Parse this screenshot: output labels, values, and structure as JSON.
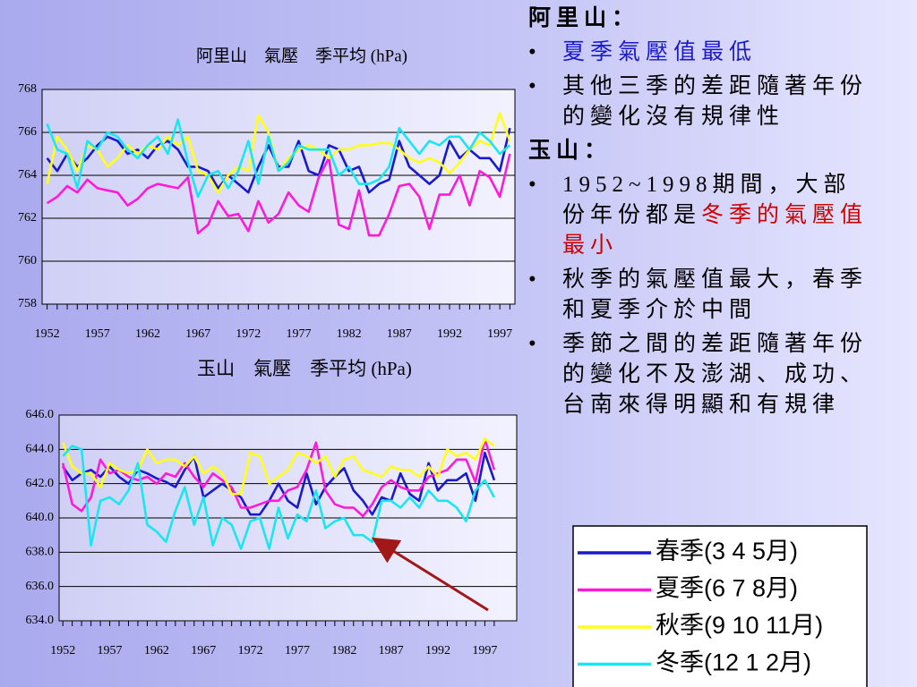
{
  "chart_data": [
    {
      "type": "line",
      "title": "阿里山　氣壓　季平均 (hPa)",
      "x": [
        1952,
        1953,
        1954,
        1955,
        1956,
        1957,
        1958,
        1959,
        1960,
        1961,
        1962,
        1963,
        1964,
        1965,
        1966,
        1967,
        1968,
        1969,
        1970,
        1971,
        1972,
        1973,
        1974,
        1975,
        1976,
        1977,
        1978,
        1979,
        1980,
        1981,
        1982,
        1983,
        1984,
        1985,
        1986,
        1987,
        1988,
        1989,
        1990,
        1991,
        1992,
        1993,
        1994,
        1995,
        1996,
        1997,
        1998
      ],
      "xlim": [
        1951.5,
        1998.5
      ],
      "xticks": [
        1952,
        1957,
        1962,
        1967,
        1972,
        1977,
        1982,
        1987,
        1992,
        1997
      ],
      "ylim": [
        758,
        768
      ],
      "yticks": [
        758,
        760,
        762,
        764,
        766,
        768
      ],
      "grid": true,
      "series": [
        {
          "name": "春季(3 4 5月)",
          "color": "#1a1acc",
          "values": [
            764.8,
            764.2,
            765.0,
            764.4,
            764.8,
            765.4,
            765.8,
            765.6,
            765.0,
            765.2,
            764.8,
            765.4,
            765.6,
            765.2,
            764.4,
            764.4,
            764.2,
            763.4,
            764.0,
            763.6,
            763.2,
            764.4,
            765.4,
            764.4,
            764.4,
            765.6,
            764.2,
            764.0,
            765.4,
            765.2,
            764.2,
            764.4,
            763.2,
            763.6,
            763.8,
            765.6,
            764.4,
            764.0,
            763.6,
            764.0,
            765.6,
            764.8,
            765.2,
            764.8,
            764.8,
            764.2,
            766.2
          ]
        },
        {
          "name": "夏季(6 7 8月)",
          "color": "#ff1ad9",
          "values": [
            762.7,
            763.0,
            763.5,
            763.2,
            763.8,
            763.4,
            763.3,
            763.2,
            762.6,
            762.9,
            763.4,
            763.6,
            763.5,
            763.4,
            763.9,
            761.3,
            761.7,
            762.8,
            762.1,
            762.2,
            761.4,
            762.8,
            761.8,
            762.2,
            763.2,
            762.6,
            762.3,
            763.9,
            764.8,
            761.7,
            761.5,
            763.3,
            761.2,
            761.2,
            762.2,
            763.5,
            763.6,
            763.0,
            761.5,
            763.1,
            763.1,
            764.0,
            762.6,
            764.2,
            763.9,
            763.0,
            765.0
          ]
        },
        {
          "name": "秋季(9 10 11月)",
          "color": "#ffff1a",
          "values": [
            763.6,
            765.8,
            765.2,
            764.2,
            765.4,
            765.2,
            764.4,
            764.8,
            765.4,
            765.0,
            765.4,
            765.2,
            765.8,
            765.4,
            765.8,
            764.2,
            764.0,
            763.2,
            764.0,
            764.4,
            764.2,
            766.8,
            766.0,
            764.2,
            764.8,
            765.2,
            765.4,
            765.2,
            764.8,
            765.2,
            765.2,
            765.4,
            765.4,
            765.5,
            765.5,
            765.2,
            764.8,
            764.6,
            764.8,
            764.6,
            764.1,
            764.6,
            765.2,
            765.6,
            765.4,
            766.9,
            765.6
          ]
        },
        {
          "name": "冬季(12 1 2月)",
          "color": "#1ae6f2",
          "values": [
            766.4,
            765.2,
            765.0,
            763.4,
            765.6,
            765.2,
            766.0,
            765.8,
            765.2,
            764.8,
            765.4,
            765.8,
            765.0,
            766.6,
            764.6,
            763.0,
            764.0,
            764.2,
            763.4,
            764.2,
            765.6,
            763.6,
            765.8,
            764.2,
            764.6,
            765.4,
            765.2,
            765.2,
            765.2,
            764.0,
            764.4,
            763.6,
            763.6,
            763.8,
            764.4,
            766.2,
            765.6,
            765.0,
            765.6,
            765.4,
            765.8,
            765.8,
            765.2,
            766.0,
            765.6,
            765.0,
            765.4
          ]
        }
      ]
    },
    {
      "type": "line",
      "title": "玉山　氣壓　季平均 (hPa)",
      "x": [
        1952,
        1953,
        1954,
        1955,
        1956,
        1957,
        1958,
        1959,
        1960,
        1961,
        1962,
        1963,
        1964,
        1965,
        1966,
        1967,
        1968,
        1969,
        1970,
        1971,
        1972,
        1973,
        1974,
        1975,
        1976,
        1977,
        1978,
        1979,
        1980,
        1981,
        1982,
        1983,
        1984,
        1985,
        1986,
        1987,
        1988,
        1989,
        1990,
        1991,
        1992,
        1993,
        1994,
        1995,
        1996,
        1997,
        1998
      ],
      "xlim": [
        1951.6,
        2000.4
      ],
      "xticks": [
        1952,
        1957,
        1962,
        1967,
        1972,
        1977,
        1982,
        1987,
        1992,
        1997
      ],
      "ylim": [
        634,
        646
      ],
      "yticks": [
        {
          "value": 634,
          "label": "634.0"
        },
        {
          "value": 636,
          "label": "636.0"
        },
        {
          "value": 638,
          "label": "638.0"
        },
        {
          "value": 640,
          "label": "640.0"
        },
        {
          "value": 642,
          "label": "642.0"
        },
        {
          "value": 644,
          "label": "644.0"
        },
        {
          "value": 646,
          "label": "646.0"
        }
      ],
      "grid": true,
      "series": [
        {
          "color": "#1a1acc",
          "values": [
            643.0,
            642.2,
            642.6,
            642.8,
            642.4,
            643.0,
            642.4,
            642.0,
            642.8,
            642.6,
            642.3,
            642.1,
            641.8,
            642.8,
            643.6,
            641.2,
            641.6,
            642.0,
            641.6,
            641.2,
            640.2,
            640.2,
            641.0,
            642.0,
            641.0,
            640.6,
            642.6,
            640.8,
            641.8,
            642.4,
            642.9,
            641.6,
            641.0,
            640.2,
            641.2,
            641.0,
            642.6,
            641.4,
            641.0,
            643.2,
            641.6,
            642.2,
            642.2,
            642.6,
            641.0,
            643.8,
            642.2
          ]
        },
        {
          "color": "#ff1ad9",
          "values": [
            643.2,
            640.8,
            640.4,
            641.2,
            643.4,
            642.6,
            642.8,
            642.4,
            642.2,
            642.4,
            642.0,
            642.6,
            642.4,
            643.2,
            642.4,
            641.8,
            642.6,
            642.2,
            641.8,
            640.6,
            640.6,
            640.8,
            641.0,
            641.0,
            641.6,
            641.8,
            642.8,
            644.4,
            641.6,
            640.8,
            640.6,
            640.6,
            640.1,
            640.8,
            641.8,
            642.2,
            641.8,
            641.6,
            641.6,
            642.4,
            642.6,
            642.8,
            643.4,
            643.4,
            642.1,
            644.6,
            642.8
          ]
        },
        {
          "color": "#ffff1a",
          "values": [
            644.4,
            643.0,
            642.6,
            642.6,
            641.8,
            643.2,
            642.8,
            642.6,
            642.8,
            644.0,
            643.2,
            643.4,
            643.4,
            643.0,
            643.6,
            642.6,
            643.0,
            642.6,
            641.4,
            641.4,
            643.8,
            643.6,
            642.0,
            642.4,
            642.8,
            643.8,
            643.6,
            643.2,
            643.6,
            642.4,
            643.4,
            643.6,
            642.8,
            642.6,
            642.4,
            643.0,
            642.8,
            642.8,
            642.4,
            643.0,
            642.4,
            644.0,
            643.6,
            643.8,
            643.4,
            644.6,
            644.2
          ]
        },
        {
          "color": "#1ae6f2",
          "values": [
            643.6,
            644.2,
            644.0,
            638.4,
            641.0,
            641.2,
            640.8,
            641.6,
            643.2,
            639.6,
            639.2,
            638.6,
            640.4,
            641.8,
            639.6,
            641.2,
            638.4,
            640.0,
            639.6,
            638.2,
            639.8,
            640.0,
            638.2,
            640.6,
            638.8,
            640.2,
            639.8,
            641.6,
            639.4,
            639.8,
            640.0,
            639.0,
            639.0,
            638.6,
            641.0,
            641.0,
            640.6,
            641.2,
            640.6,
            641.6,
            641.0,
            641.0,
            640.6,
            639.8,
            641.6,
            642.2,
            641.2
          ]
        }
      ]
    }
  ],
  "slide": {
    "sections": [
      {
        "heading": "阿里山：",
        "bullets": [
          [
            {
              "text": "夏季氣壓值最低",
              "color": "#1a1acc"
            }
          ],
          [
            {
              "text": "其他三季的差距隨著年份的變化沒有規律性",
              "color": "#000000"
            }
          ]
        ]
      },
      {
        "heading": "玉山：",
        "bullets": [
          [
            {
              "text": "1952~1998期間，大部份年份都是",
              "color": "#000000"
            },
            {
              "text": "冬季的氣壓值最小",
              "color": "#cc0000"
            }
          ],
          [
            {
              "text": "秋季的氣壓值最大，春季和夏季介於中間",
              "color": "#000000"
            }
          ],
          [
            {
              "text": "季節之間的差距隨著年份的變化不及澎湖、成功、台南來得明顯和有規律",
              "color": "#000000"
            }
          ]
        ]
      }
    ]
  }
}
